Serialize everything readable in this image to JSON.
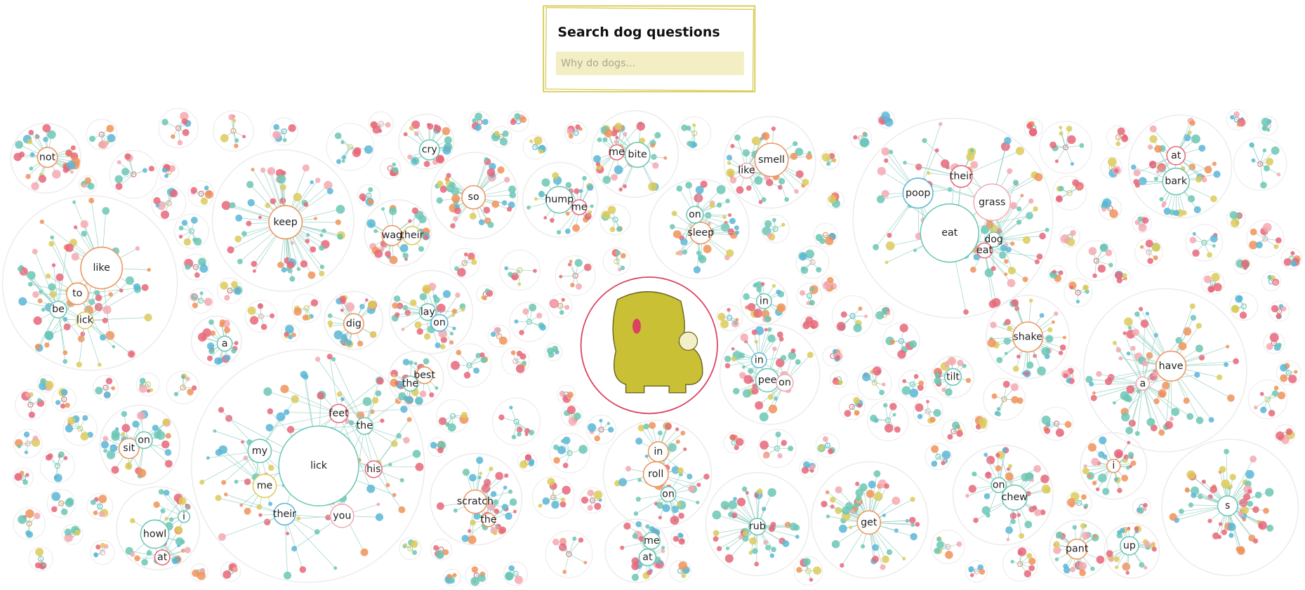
{
  "header": {
    "title": "Search dog questions",
    "placeholder": "Why do dogs..."
  },
  "clusters": [
    {
      "words": [
        "like",
        "to",
        "be",
        "lick"
      ]
    },
    {
      "words": [
        "lick",
        "my",
        "me",
        "their",
        "you",
        "feet",
        "the",
        "his"
      ]
    },
    {
      "words": [
        "keep"
      ]
    },
    {
      "words": [
        "eat",
        "poop",
        "grass",
        "their",
        "dog",
        "eat"
      ]
    },
    {
      "words": [
        "have",
        "a"
      ]
    },
    {
      "words": [
        "s"
      ]
    },
    {
      "words": [
        "get"
      ]
    },
    {
      "words": [
        "rub"
      ]
    },
    {
      "words": [
        "roll",
        "in",
        "on"
      ]
    },
    {
      "words": [
        "chew",
        "on"
      ]
    },
    {
      "words": [
        "shake"
      ]
    },
    {
      "words": [
        "pee",
        "in",
        "on"
      ]
    },
    {
      "words": [
        "smell",
        "like"
      ]
    },
    {
      "words": [
        "bite",
        "me"
      ]
    },
    {
      "words": [
        "sleep",
        "on"
      ]
    },
    {
      "words": [
        "hump",
        "me"
      ]
    },
    {
      "words": [
        "so"
      ]
    },
    {
      "words": [
        "cry"
      ]
    },
    {
      "words": [
        "wag",
        "their"
      ]
    },
    {
      "words": [
        "lay",
        "on"
      ]
    },
    {
      "words": [
        "dig"
      ]
    },
    {
      "words": [
        "howl",
        "at",
        "i"
      ]
    },
    {
      "words": [
        "sit",
        "on"
      ]
    },
    {
      "words": [
        "bark",
        "at"
      ]
    },
    {
      "words": [
        "scratch",
        "the"
      ]
    },
    {
      "words": [
        "me",
        "at"
      ]
    },
    {
      "words": [
        "pant"
      ]
    },
    {
      "words": [
        "up"
      ]
    },
    {
      "words": [
        "not"
      ]
    },
    {
      "words": [
        "a"
      ]
    },
    {
      "words": [
        "best",
        "the"
      ]
    },
    {
      "words": [
        "tilt"
      ]
    },
    {
      "words": [
        "i"
      ]
    },
    {
      "words": [
        "in"
      ]
    }
  ]
}
